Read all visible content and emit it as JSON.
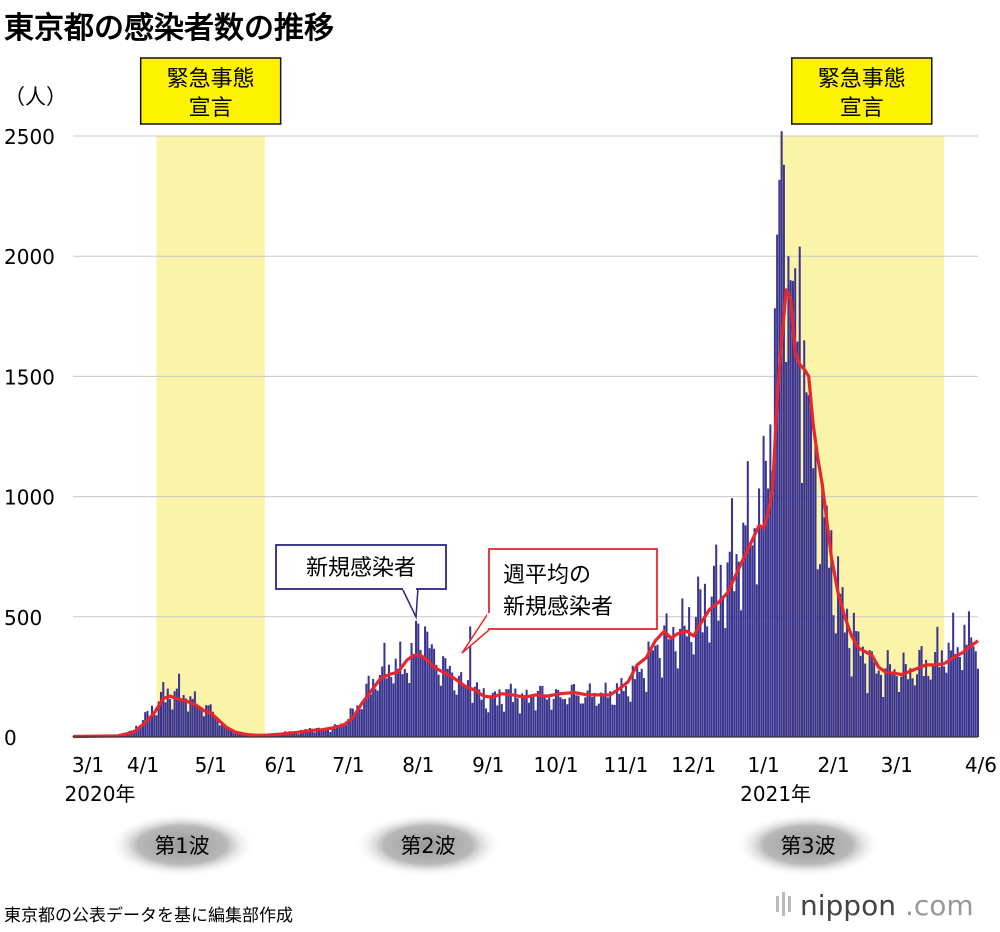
{
  "chart_data": {
    "type": "bar",
    "title": "東京都の感染者数の推移",
    "unit_label": "（人）",
    "ylim": [
      0,
      2500
    ],
    "y_ticks": [
      0,
      500,
      1000,
      1500,
      2000,
      2500
    ],
    "x_ticks": [
      "3/1",
      "4/1",
      "5/1",
      "6/1",
      "7/1",
      "8/1",
      "9/1",
      "10/1",
      "11/1",
      "12/1",
      "1/1",
      "2/1",
      "3/1",
      "4/6"
    ],
    "x_tick_days": [
      0,
      31,
      61,
      92,
      122,
      153,
      184,
      214,
      245,
      275,
      306,
      337,
      365,
      401
    ],
    "year_labels": [
      {
        "label": "2020年",
        "day": 0
      },
      {
        "label": "2021年",
        "day": 306
      }
    ],
    "x_range_days": [
      0,
      401
    ],
    "emergency_periods": [
      {
        "label_line1": "緊急事態",
        "label_line2": "宣言",
        "start_day": 37,
        "end_day": 85
      },
      {
        "label_line1": "緊急事態",
        "label_line2": "宣言",
        "start_day": 313,
        "end_day": 386
      }
    ],
    "series": [
      {
        "name": "新規感染者",
        "kind": "bar",
        "color": "#3a3490",
        "anchors": [
          [
            0,
            2
          ],
          [
            20,
            5
          ],
          [
            24,
            12
          ],
          [
            28,
            40
          ],
          [
            33,
            90
          ],
          [
            37,
            130
          ],
          [
            41,
            185
          ],
          [
            44,
            170
          ],
          [
            47,
            190
          ],
          [
            51,
            160
          ],
          [
            56,
            130
          ],
          [
            60,
            120
          ],
          [
            63,
            90
          ],
          [
            67,
            40
          ],
          [
            72,
            20
          ],
          [
            77,
            10
          ],
          [
            82,
            7
          ],
          [
            88,
            10
          ],
          [
            95,
            20
          ],
          [
            100,
            20
          ],
          [
            105,
            35
          ],
          [
            110,
            30
          ],
          [
            115,
            35
          ],
          [
            120,
            60
          ],
          [
            125,
            110
          ],
          [
            130,
            180
          ],
          [
            134,
            240
          ],
          [
            138,
            280
          ],
          [
            142,
            300
          ],
          [
            146,
            280
          ],
          [
            150,
            330
          ],
          [
            153,
            400
          ],
          [
            156,
            380
          ],
          [
            159,
            340
          ],
          [
            163,
            300
          ],
          [
            168,
            260
          ],
          [
            172,
            220
          ],
          [
            176,
            200
          ],
          [
            180,
            180
          ],
          [
            184,
            150
          ],
          [
            188,
            160
          ],
          [
            192,
            170
          ],
          [
            196,
            180
          ],
          [
            200,
            150
          ],
          [
            205,
            180
          ],
          [
            210,
            170
          ],
          [
            214,
            160
          ],
          [
            218,
            175
          ],
          [
            222,
            180
          ],
          [
            226,
            170
          ],
          [
            230,
            175
          ],
          [
            235,
            170
          ],
          [
            240,
            180
          ],
          [
            245,
            200
          ],
          [
            250,
            250
          ],
          [
            254,
            300
          ],
          [
            258,
            360
          ],
          [
            262,
            400
          ],
          [
            266,
            420
          ],
          [
            270,
            430
          ],
          [
            274,
            480
          ],
          [
            278,
            520
          ],
          [
            282,
            560
          ],
          [
            286,
            620
          ],
          [
            290,
            680
          ],
          [
            294,
            750
          ],
          [
            298,
            830
          ],
          [
            302,
            900
          ],
          [
            306,
            1000
          ],
          [
            309,
            1300
          ],
          [
            311,
            1700
          ],
          [
            313,
            2000
          ],
          [
            315,
            1900
          ],
          [
            317,
            1700
          ],
          [
            319,
            1650
          ],
          [
            321,
            1550
          ],
          [
            324,
            1400
          ],
          [
            327,
            1200
          ],
          [
            330,
            1000
          ],
          [
            333,
            850
          ],
          [
            336,
            720
          ],
          [
            339,
            600
          ],
          [
            342,
            480
          ],
          [
            345,
            420
          ],
          [
            348,
            380
          ],
          [
            351,
            330
          ],
          [
            354,
            290
          ],
          [
            357,
            270
          ],
          [
            360,
            270
          ],
          [
            363,
            280
          ],
          [
            366,
            270
          ],
          [
            369,
            260
          ],
          [
            372,
            280
          ],
          [
            375,
            290
          ],
          [
            378,
            300
          ],
          [
            381,
            310
          ],
          [
            384,
            340
          ],
          [
            388,
            360
          ],
          [
            392,
            380
          ],
          [
            396,
            400
          ],
          [
            401,
            410
          ]
        ],
        "spikes": [
          [
            153,
            472
          ],
          [
            156,
            460
          ],
          [
            176,
            460
          ],
          [
            305,
            870
          ],
          [
            309,
            1300
          ],
          [
            314,
            2520
          ],
          [
            315,
            2380
          ],
          [
            316,
            1560
          ],
          [
            317,
            2000
          ],
          [
            318,
            1900
          ],
          [
            320,
            1950
          ],
          [
            322,
            2040
          ],
          [
            324,
            1650
          ]
        ]
      },
      {
        "name": "週平均の新規感染者",
        "kind": "line",
        "color": "#e8262e",
        "points": [
          [
            0,
            2
          ],
          [
            20,
            5
          ],
          [
            27,
            20
          ],
          [
            32,
            60
          ],
          [
            36,
            100
          ],
          [
            40,
            160
          ],
          [
            43,
            170
          ],
          [
            46,
            160
          ],
          [
            50,
            150
          ],
          [
            54,
            135
          ],
          [
            58,
            110
          ],
          [
            61,
            100
          ],
          [
            64,
            75
          ],
          [
            68,
            40
          ],
          [
            72,
            20
          ],
          [
            77,
            10
          ],
          [
            82,
            7
          ],
          [
            86,
            8
          ],
          [
            92,
            12
          ],
          [
            100,
            20
          ],
          [
            106,
            28
          ],
          [
            110,
            30
          ],
          [
            115,
            38
          ],
          [
            120,
            50
          ],
          [
            124,
            80
          ],
          [
            128,
            140
          ],
          [
            132,
            190
          ],
          [
            136,
            240
          ],
          [
            140,
            260
          ],
          [
            144,
            270
          ],
          [
            148,
            320
          ],
          [
            151,
            340
          ],
          [
            154,
            340
          ],
          [
            157,
            320
          ],
          [
            160,
            290
          ],
          [
            164,
            270
          ],
          [
            168,
            250
          ],
          [
            171,
            230
          ],
          [
            174,
            210
          ],
          [
            178,
            195
          ],
          [
            182,
            170
          ],
          [
            186,
            165
          ],
          [
            190,
            180
          ],
          [
            195,
            175
          ],
          [
            200,
            165
          ],
          [
            205,
            175
          ],
          [
            210,
            170
          ],
          [
            216,
            180
          ],
          [
            222,
            185
          ],
          [
            228,
            175
          ],
          [
            234,
            175
          ],
          [
            238,
            175
          ],
          [
            242,
            200
          ],
          [
            246,
            230
          ],
          [
            250,
            300
          ],
          [
            254,
            330
          ],
          [
            258,
            400
          ],
          [
            262,
            440
          ],
          [
            265,
            410
          ],
          [
            268,
            430
          ],
          [
            272,
            440
          ],
          [
            275,
            420
          ],
          [
            278,
            470
          ],
          [
            282,
            530
          ],
          [
            286,
            560
          ],
          [
            290,
            600
          ],
          [
            294,
            680
          ],
          [
            298,
            760
          ],
          [
            302,
            840
          ],
          [
            304,
            880
          ],
          [
            306,
            870
          ],
          [
            308,
            930
          ],
          [
            310,
            1030
          ],
          [
            312,
            1400
          ],
          [
            314,
            1650
          ],
          [
            316,
            1860
          ],
          [
            318,
            1820
          ],
          [
            320,
            1600
          ],
          [
            322,
            1550
          ],
          [
            324,
            1530
          ],
          [
            326,
            1500
          ],
          [
            328,
            1300
          ],
          [
            330,
            1160
          ],
          [
            332,
            1050
          ],
          [
            334,
            900
          ],
          [
            336,
            750
          ],
          [
            339,
            600
          ],
          [
            342,
            500
          ],
          [
            345,
            420
          ],
          [
            348,
            370
          ],
          [
            351,
            355
          ],
          [
            354,
            340
          ],
          [
            357,
            290
          ],
          [
            360,
            270
          ],
          [
            364,
            265
          ],
          [
            367,
            260
          ],
          [
            370,
            270
          ],
          [
            374,
            285
          ],
          [
            378,
            300
          ],
          [
            382,
            300
          ],
          [
            386,
            305
          ],
          [
            390,
            330
          ],
          [
            394,
            350
          ],
          [
            398,
            380
          ],
          [
            401,
            400
          ]
        ]
      }
    ],
    "callouts": [
      {
        "label": "新規感染者",
        "arrow_day": 153,
        "arrow_value": 470
      },
      {
        "label_line1": "週平均の",
        "label_line2": "新規感染者",
        "arrow_day": 160,
        "arrow_value": 345
      }
    ],
    "waves": [
      "第1波",
      "第2波",
      "第3波"
    ]
  },
  "source_note": "東京都の公表データを基に編集部作成",
  "brand": {
    "name": "nippon",
    "dot_com": ".com"
  },
  "colors": {
    "bars": "#3a3490",
    "average_line": "#e8262e",
    "emergency_band": "#fbf4a8",
    "emergency_label_bg": "#fdf300",
    "grid": "#c8c8c8",
    "callout_border_bars": "#2b2680",
    "callout_border_line": "#e8262e"
  }
}
